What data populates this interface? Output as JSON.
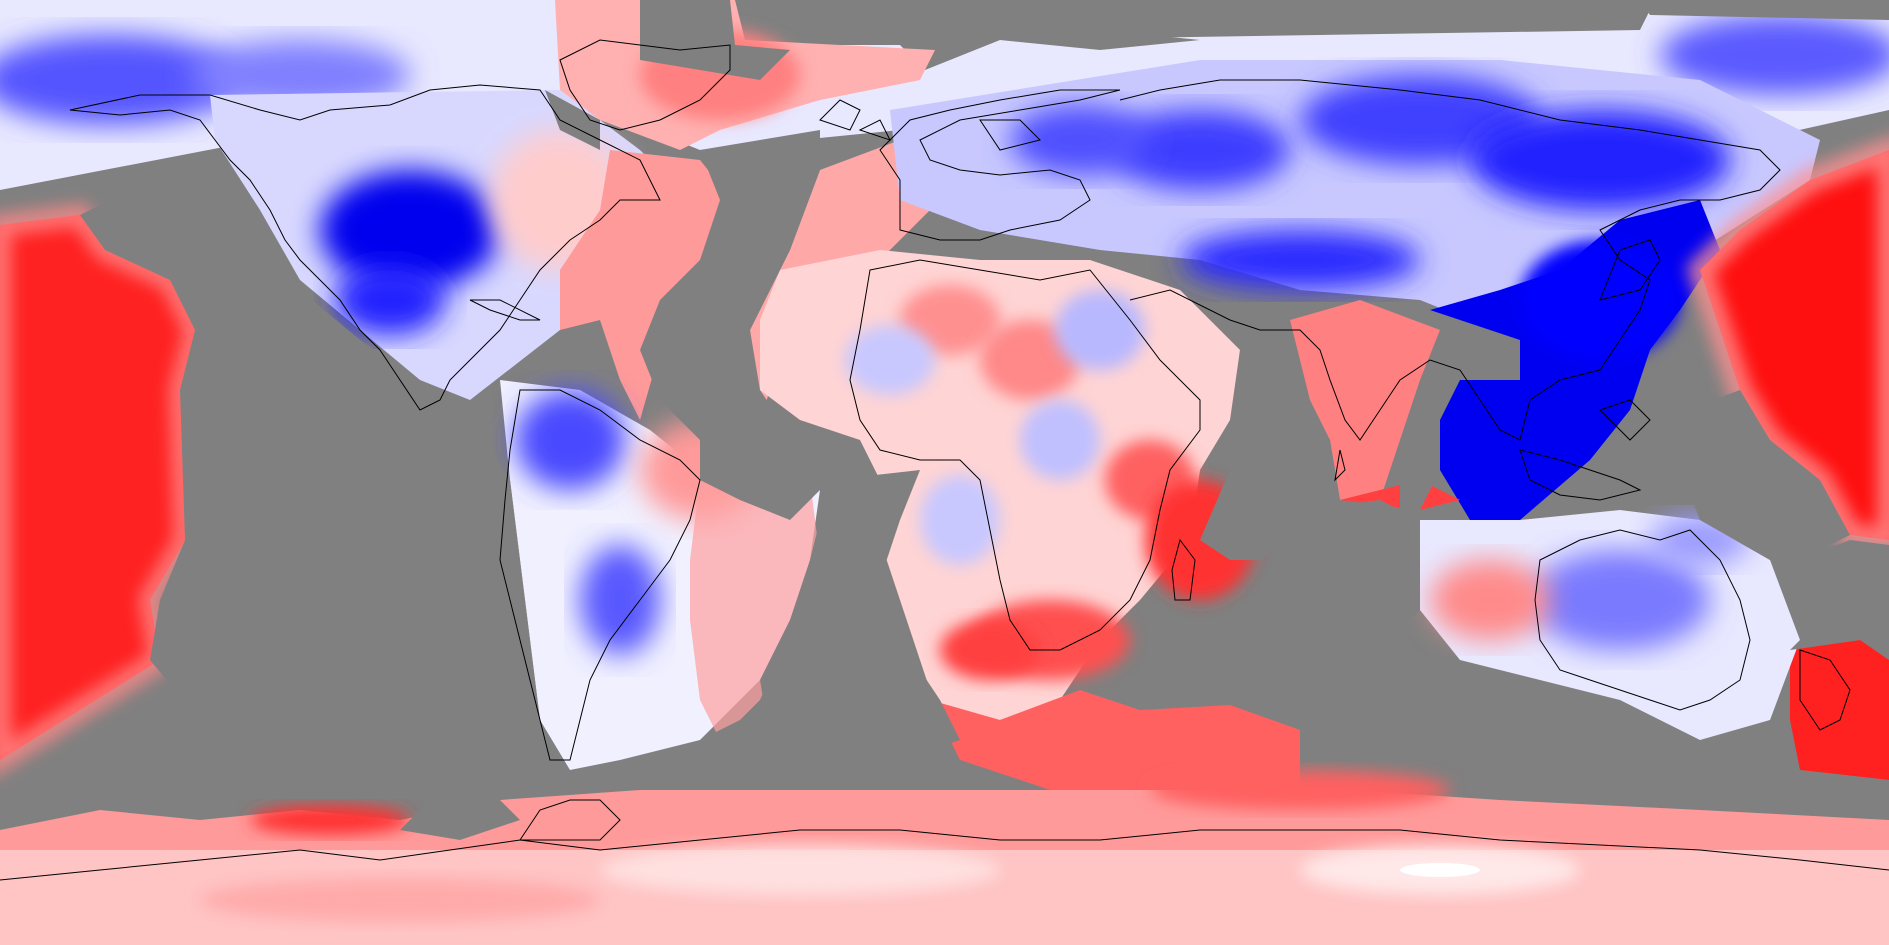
{
  "map": {
    "projection": "equirectangular",
    "missing_color": "#808080",
    "coastline_color": "#000000",
    "colormap": [
      "#0000ff",
      "#6666ff",
      "#ccccff",
      "#ffffff",
      "#ffcccc",
      "#ff6666",
      "#ff0000"
    ],
    "regions": [
      {
        "name": "north-pacific-anomaly",
        "tone": "negative"
      },
      {
        "name": "western-north-america-anomaly",
        "tone": "strong-negative"
      },
      {
        "name": "greenland-anomaly",
        "tone": "positive"
      },
      {
        "name": "eastern-pacific-anomaly",
        "tone": "strong-positive"
      },
      {
        "name": "north-atlantic-anomaly",
        "tone": "positive"
      },
      {
        "name": "eurasia-anomaly",
        "tone": "negative"
      },
      {
        "name": "east-asia-anomaly",
        "tone": "strong-negative"
      },
      {
        "name": "west-pacific-anomaly",
        "tone": "strong-positive"
      },
      {
        "name": "africa-anomaly",
        "tone": "mixed"
      },
      {
        "name": "indian-ocean-anomaly",
        "tone": "positive"
      },
      {
        "name": "south-america-anomaly",
        "tone": "negative"
      },
      {
        "name": "australia-anomaly",
        "tone": "negative"
      },
      {
        "name": "southern-ocean-anomaly",
        "tone": "positive"
      },
      {
        "name": "antarctica-anomaly",
        "tone": "weak-positive"
      }
    ]
  }
}
